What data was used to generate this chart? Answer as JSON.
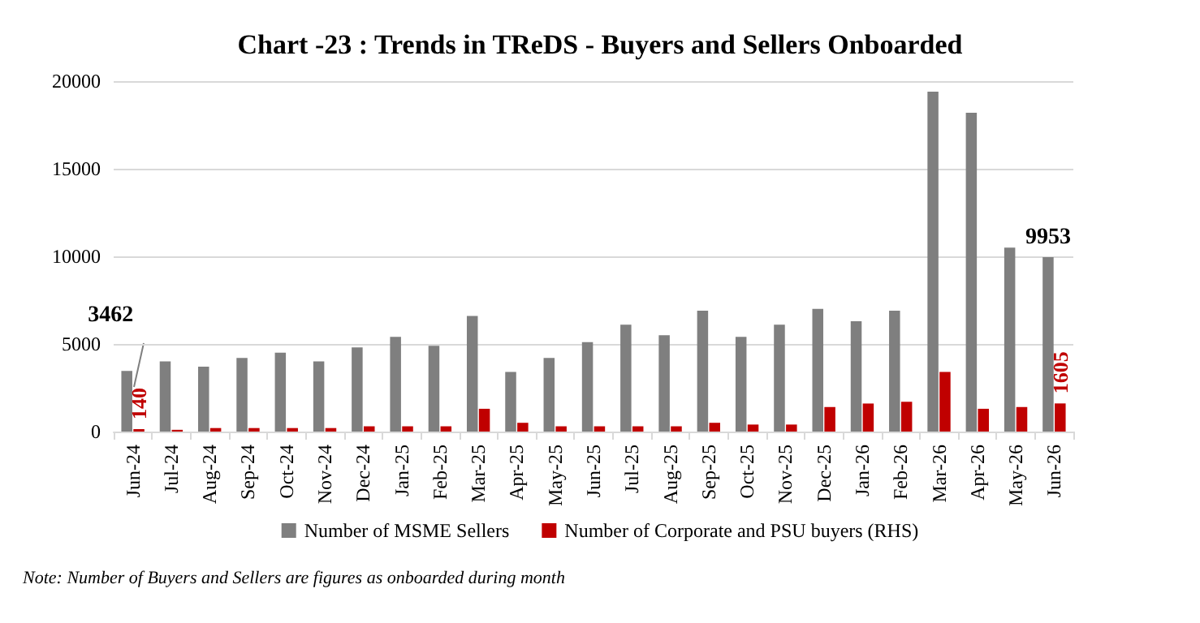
{
  "chart_data": {
    "type": "bar",
    "title": "Chart -23 : Trends in TReDS - Buyers and Sellers Onboarded",
    "categories": [
      "Jun-24",
      "Jul-24",
      "Aug-24",
      "Sep-24",
      "Oct-24",
      "Nov-24",
      "Dec-24",
      "Jan-25",
      "Feb-25",
      "Mar-25",
      "Apr-25",
      "May-25",
      "Jun-25",
      "Jul-25",
      "Aug-25",
      "Sep-25",
      "Oct-25",
      "Nov-25",
      "Dec-25",
      "Jan-26",
      "Feb-26",
      "Mar-26",
      "Apr-26",
      "May-26",
      "Jun-26"
    ],
    "series": [
      {
        "name": "Number of MSME Sellers",
        "color": "#7f7f7f",
        "values": [
          3462,
          4000,
          3700,
          4200,
          4500,
          4000,
          4800,
          5400,
          4900,
          6600,
          3400,
          4200,
          5100,
          6100,
          5500,
          6900,
          5400,
          6100,
          7000,
          6300,
          6900,
          19400,
          18200,
          10500,
          9953
        ],
        "value_labels": [
          "3462",
          null,
          null,
          null,
          null,
          null,
          null,
          null,
          null,
          null,
          null,
          null,
          null,
          null,
          null,
          null,
          null,
          null,
          null,
          null,
          null,
          null,
          null,
          null,
          "9953"
        ]
      },
      {
        "name": "Number of Corporate and PSU buyers (RHS)",
        "color": "#c00000",
        "values": [
          140,
          100,
          200,
          200,
          200,
          200,
          300,
          300,
          300,
          1300,
          500,
          300,
          300,
          300,
          300,
          500,
          400,
          400,
          1400,
          1600,
          1700,
          3400,
          1300,
          1400,
          1605
        ],
        "value_labels": [
          "140",
          null,
          null,
          null,
          null,
          null,
          null,
          null,
          null,
          null,
          null,
          null,
          null,
          null,
          null,
          null,
          null,
          null,
          null,
          null,
          null,
          null,
          null,
          null,
          "1605"
        ]
      }
    ],
    "ylim": [
      0,
      20000
    ],
    "yticks": [
      0,
      {
        "value": 5000,
        "label": "5000"
      },
      {
        "value": 10000,
        "label": "10000"
      },
      {
        "value": 15000,
        "label": "15000"
      },
      {
        "value": 20000,
        "label": "20000"
      }
    ],
    "grid": "y",
    "legend": "bottom",
    "annotations": [
      "Note: Number of Buyers and Sellers are figures as onboarded during month"
    ]
  }
}
